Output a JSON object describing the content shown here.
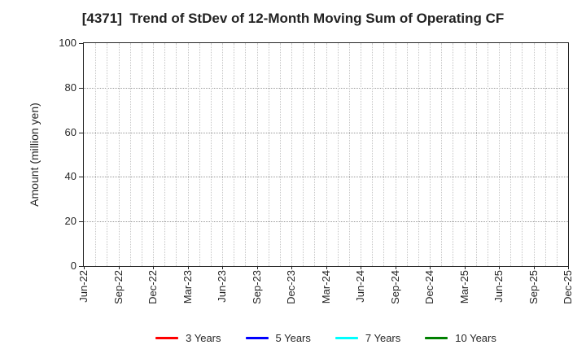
{
  "chart_data": {
    "type": "line",
    "title": "[4371]  Trend of StDev of 12-Month Moving Sum of Operating CF",
    "ylabel": "Amount (million yen)",
    "xlabel": "",
    "ylim": [
      0,
      100
    ],
    "yticks": [
      0,
      20,
      40,
      60,
      80,
      100
    ],
    "x_tick_labels": [
      "Jun-22",
      "Sep-22",
      "Dec-22",
      "Mar-23",
      "Jun-23",
      "Sep-23",
      "Dec-23",
      "Mar-24",
      "Jun-24",
      "Sep-24",
      "Dec-24",
      "Mar-25",
      "Jun-25",
      "Sep-25",
      "Dec-25"
    ],
    "x_minor_per_major": 3,
    "grid": "dotted",
    "legend_position": "bottom",
    "plot_is_empty": true,
    "series": [
      {
        "name": "3 Years",
        "color": "#ff0000",
        "values": []
      },
      {
        "name": "5 Years",
        "color": "#0000ff",
        "values": []
      },
      {
        "name": "7 Years",
        "color": "#00ffff",
        "values": []
      },
      {
        "name": "10 Years",
        "color": "#008000",
        "values": []
      }
    ]
  },
  "colors": {
    "background": "#ffffff",
    "axis": "#262626",
    "text": "#262626",
    "grid_horizontal": "#999999",
    "grid_vertical": "#c6c6c6"
  }
}
